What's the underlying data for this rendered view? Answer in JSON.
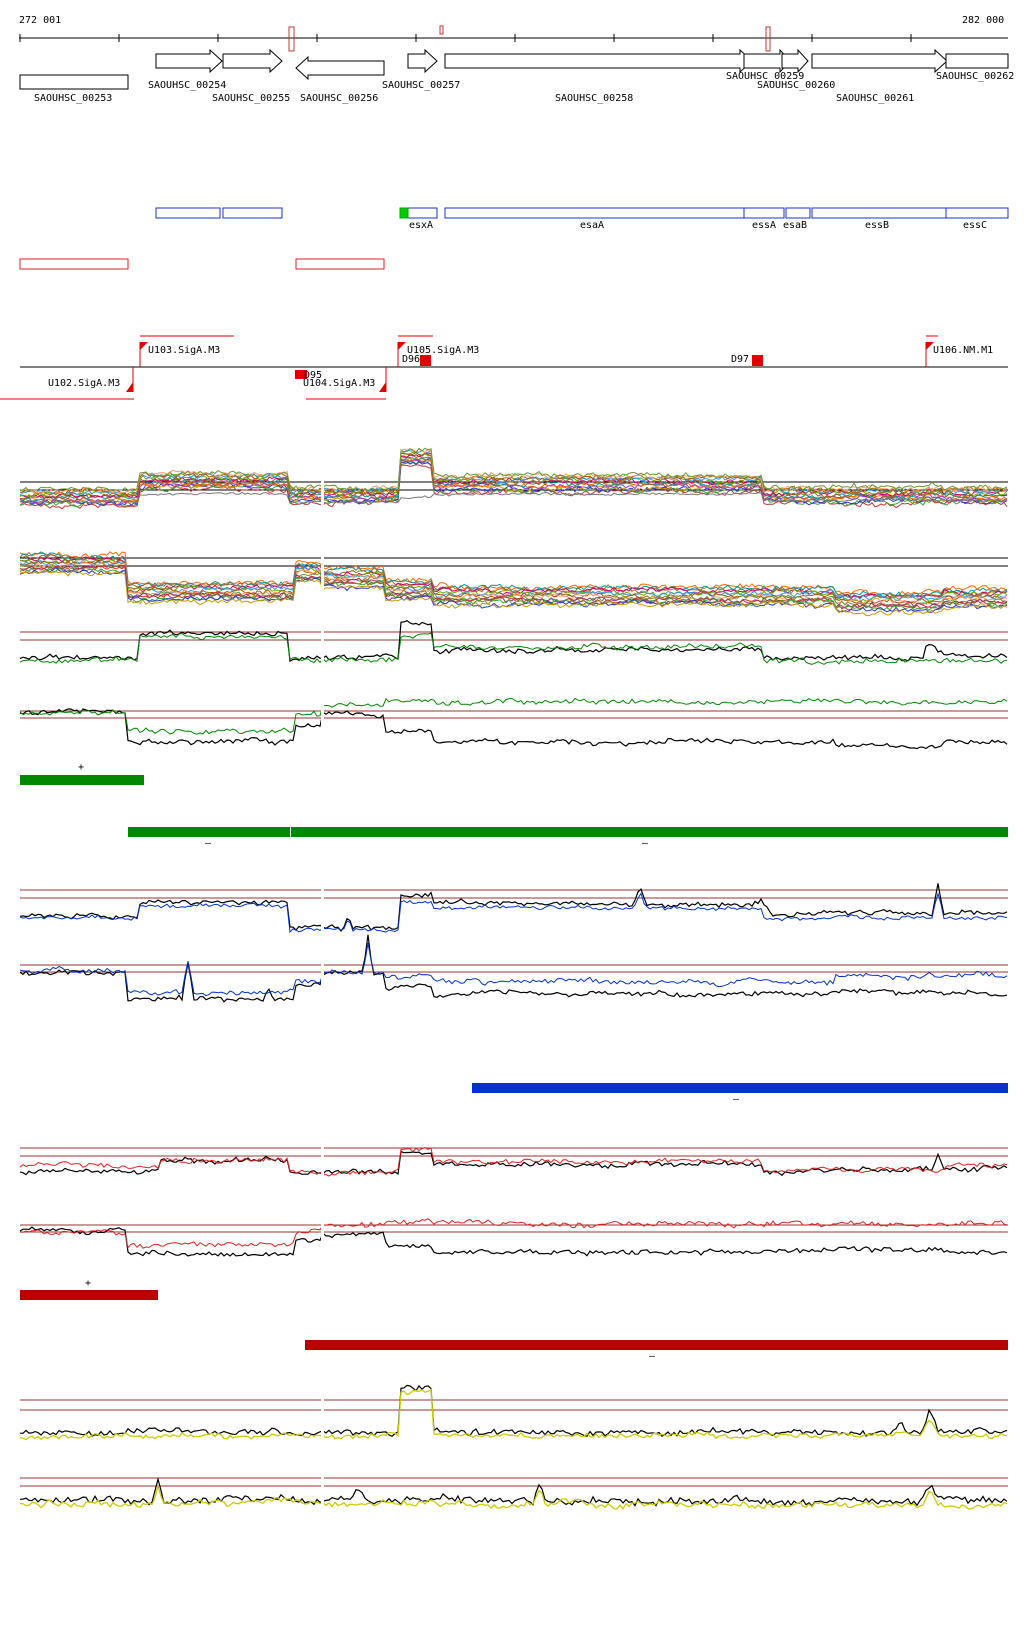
{
  "axis": {
    "start_label": "272 001",
    "end_label": "282 000"
  },
  "genes": [
    {
      "label": "SAOUHSC_00253"
    },
    {
      "label": "SAOUHSC_00254"
    },
    {
      "label": "SAOUHSC_00255"
    },
    {
      "label": "SAOUHSC_00256"
    },
    {
      "label": "SAOUHSC_00257"
    },
    {
      "label": "SAOUHSC_00258"
    },
    {
      "label": "SAOUHSC_00259"
    },
    {
      "label": "SAOUHSC_00260"
    },
    {
      "label": "SAOUHSC_00261"
    },
    {
      "label": "SAOUHSC_00262"
    }
  ],
  "gene_names": [
    {
      "label": "esxA"
    },
    {
      "label": "esaA"
    },
    {
      "label": "essA"
    },
    {
      "label": "esaB"
    },
    {
      "label": "essB"
    },
    {
      "label": "essC"
    }
  ],
  "promoters": [
    {
      "label": "U102.SigA.M3"
    },
    {
      "label": "U103.SigA.M3"
    },
    {
      "label": "D95"
    },
    {
      "label": "U104.SigA.M3"
    },
    {
      "label": "U105.SigA.M3"
    },
    {
      "label": "D96"
    },
    {
      "label": "D97"
    },
    {
      "label": "U106.NM.M1"
    }
  ],
  "strand_labels": {
    "plus": "+",
    "minus": "–"
  },
  "colors": {
    "gene_outline": "#000000",
    "blue_track": "#1a33cc",
    "red_track": "#dd2222",
    "green_seg": "#008800",
    "blue_seg": "#0033cc",
    "red_seg": "#bb0000",
    "yellow_line": "#cccc00",
    "threshold": "#993333"
  },
  "icons": [
    "promoter-flag-icon",
    "gene-arrow-icon"
  ]
}
